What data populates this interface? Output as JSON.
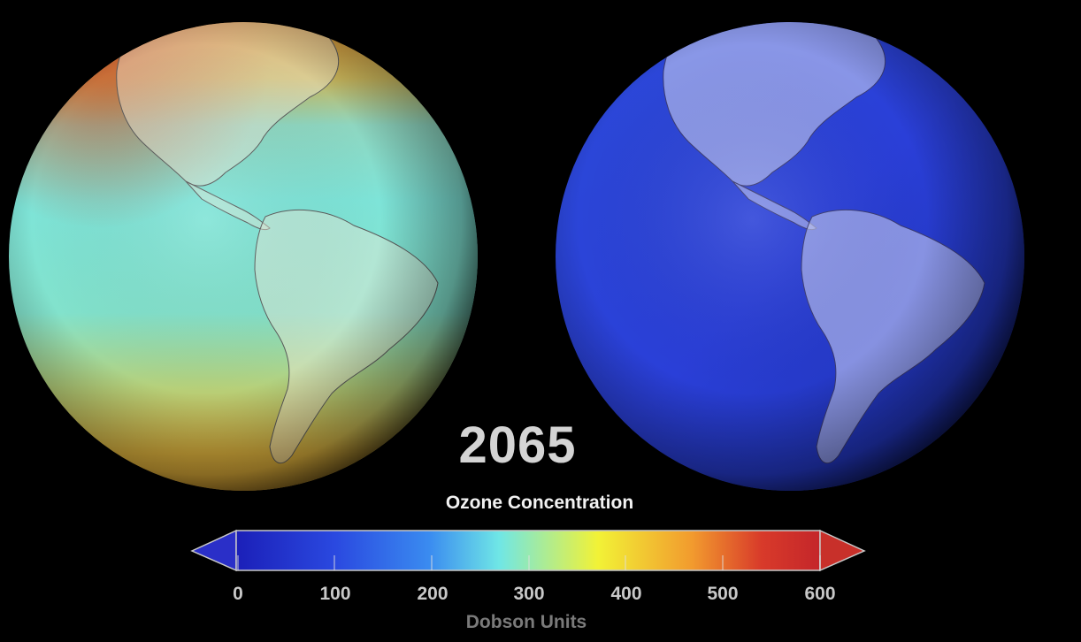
{
  "year": "2065",
  "colorbar": {
    "title": "Ozone Concentration",
    "units": "Dobson Units",
    "ticks": [
      "0",
      "100",
      "200",
      "300",
      "400",
      "500",
      "600"
    ],
    "range": [
      0,
      600
    ],
    "colors": [
      "#1b1fb8",
      "#2a49e0",
      "#3a8bf0",
      "#6fe6e6",
      "#f2f236",
      "#f29b2e",
      "#d83a2a",
      "#c4262a"
    ]
  },
  "globes": [
    {
      "name": "left-globe",
      "base_color": "#7de0d2",
      "polar_color": "#d8a83a"
    },
    {
      "name": "right-globe",
      "base_color": "#2a44e0"
    }
  ]
}
